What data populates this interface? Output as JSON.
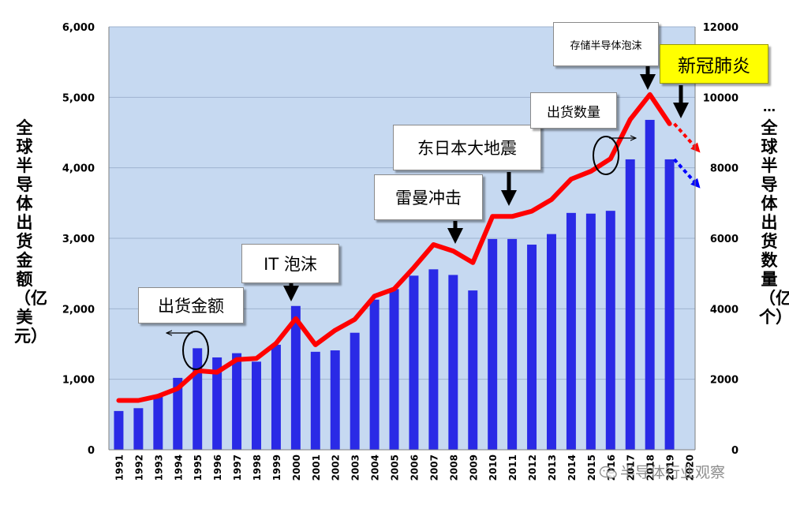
{
  "chart_data": {
    "type": "bar+line",
    "years": [
      "1991",
      "1992",
      "1993",
      "1994",
      "1995",
      "1996",
      "1997",
      "1998",
      "1999",
      "2000",
      "2001",
      "2002",
      "2003",
      "2004",
      "2005",
      "2006",
      "2007",
      "2008",
      "2009",
      "2010",
      "2011",
      "2012",
      "2013",
      "2014",
      "2015",
      "2016",
      "2017",
      "2018",
      "2019",
      "2020"
    ],
    "series": [
      {
        "name": "出货金额",
        "axis": "left",
        "kind": "bar",
        "color": "#2a2ae6",
        "values": [
          550,
          590,
          770,
          1020,
          1440,
          1310,
          1370,
          1250,
          1490,
          2040,
          1390,
          1410,
          1660,
          2130,
          2280,
          2470,
          2560,
          2480,
          2260,
          2990,
          2990,
          2910,
          3060,
          3360,
          3350,
          3390,
          4120,
          4680,
          4120,
          null
        ]
      },
      {
        "name": "出货数量",
        "axis": "right",
        "kind": "line",
        "color": "#ff0000",
        "values": [
          1400,
          1400,
          1520,
          1740,
          2240,
          2200,
          2560,
          2590,
          3020,
          3720,
          2980,
          3390,
          3700,
          4360,
          4560,
          5170,
          5820,
          5640,
          5310,
          6620,
          6620,
          6770,
          7100,
          7680,
          7900,
          8260,
          9370,
          10080,
          9250,
          null
        ]
      }
    ],
    "projection_arrows": [
      {
        "series": "出货数量",
        "color": "#ff0000",
        "from_year": "2019",
        "from_value": 9250,
        "to_value": 8530
      },
      {
        "series": "出货金额",
        "color": "#0000ff",
        "from_year": "2019",
        "from_value": 4120,
        "to_value": 3760
      }
    ],
    "left_axis": {
      "label": "全球半导体出货金额（亿美元）",
      "ticks": [
        "0",
        "1,000",
        "2,000",
        "3,000",
        "4,000",
        "5,000",
        "6,000"
      ],
      "range": [
        0,
        6000
      ]
    },
    "right_axis": {
      "label": "全球半导体出货数量（亿个）",
      "ticks": [
        "0",
        "2000",
        "4000",
        "6000",
        "8000",
        "10000",
        "12000"
      ],
      "range": [
        0,
        12000
      ]
    },
    "right_axis_prefix": "…",
    "x_tick_labels": [
      "1991",
      "1992",
      "1993",
      "1994",
      "1995",
      "1996",
      "1997",
      "1998",
      "1999",
      "2000",
      "2001",
      "2002",
      "2003",
      "2004",
      "2005",
      "2006",
      "2007",
      "2008",
      "2009",
      "2010",
      "2011",
      "2012",
      "2013",
      "2014",
      "2015",
      "2016",
      "2017",
      "2018",
      "2019",
      "2020"
    ],
    "annotations": [
      {
        "id": "shipment-value",
        "text": "出货金额",
        "points_to_year": "1995",
        "kind": "series-label"
      },
      {
        "id": "it-bubble",
        "text": "IT 泡沫",
        "points_to_year": "2000",
        "kind": "event"
      },
      {
        "id": "lehman",
        "text": "雷曼冲击",
        "points_to_year": "2008",
        "kind": "event"
      },
      {
        "id": "tohoku",
        "text": "东日本大地震",
        "points_to_year": "2011",
        "kind": "event"
      },
      {
        "id": "shipment-volume",
        "text": "出货数量",
        "points_to_year": "2016",
        "kind": "series-label"
      },
      {
        "id": "memory-bubble",
        "text": "存储半导体泡沫",
        "points_to_year": "2018",
        "kind": "event"
      },
      {
        "id": "covid",
        "text": "新冠肺炎",
        "points_to_year": "2020",
        "kind": "event",
        "highlight": "#ffff00"
      }
    ],
    "plot_background": "#c6d9f1",
    "grid": "horizontal"
  },
  "watermark": {
    "text": "半导体行业观察"
  }
}
